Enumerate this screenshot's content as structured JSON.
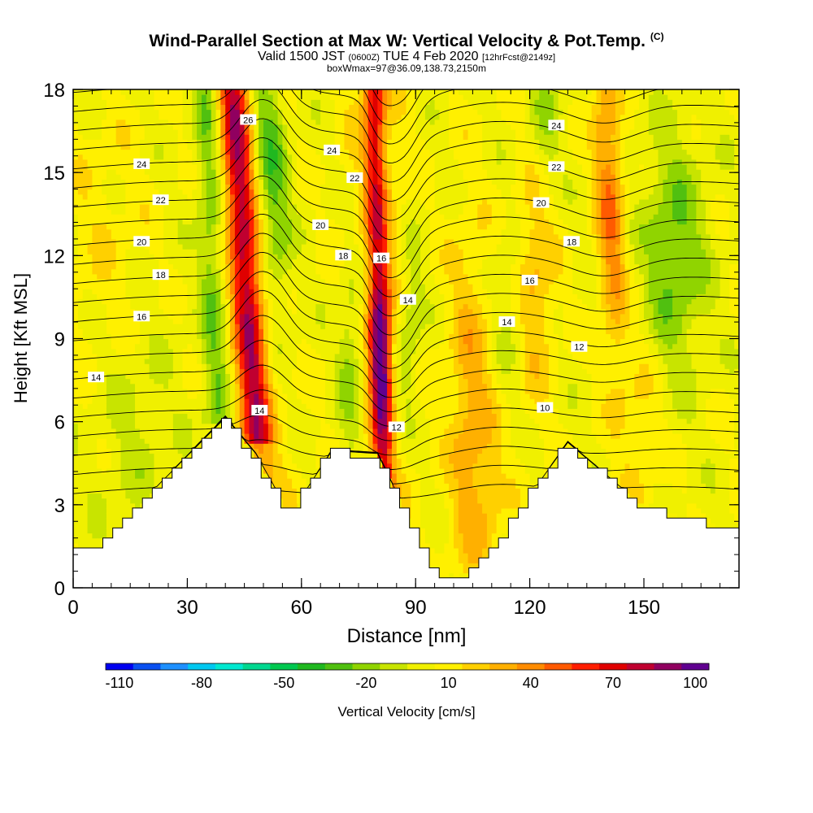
{
  "header": {
    "title": "Wind-Parallel Section at Max W: Vertical Velocity & Pot.Temp.",
    "copyright": "(C)",
    "valid_a": "Valid 1500 JST",
    "valid_b": "(0600Z)",
    "valid_c": "TUE 4 Feb 2020",
    "valid_d": "[12hrFcst@2149z]",
    "box": "boxWmax=97@36.09,138.73,2150m"
  },
  "chart_data": {
    "type": "heatmap",
    "xlabel": "Distance [nm]",
    "ylabel": "Height [Kft MSL]",
    "xlim": [
      0,
      175
    ],
    "ylim": [
      0,
      18
    ],
    "x_ticks": [
      "0",
      "30",
      "60",
      "90",
      "120",
      "150"
    ],
    "y_ticks": [
      "0",
      "3",
      "6",
      "9",
      "12",
      "15",
      "18"
    ],
    "colorbar": {
      "label": "Vertical Velocity [cm/s]",
      "tick_labels": [
        "-110",
        "-80",
        "-50",
        "-20",
        "10",
        "40",
        "70",
        "100"
      ],
      "colors": [
        "#0000f0",
        "#0a50f0",
        "#1e90ff",
        "#00c8f0",
        "#00e8d0",
        "#00d890",
        "#00c850",
        "#20b820",
        "#50c010",
        "#90d400",
        "#c8e400",
        "#f0f000",
        "#fff000",
        "#ffd000",
        "#ffb000",
        "#ff8c00",
        "#ff5a00",
        "#ff1e00",
        "#e00000",
        "#c00030",
        "#900060",
        "#600090"
      ]
    },
    "theta_labels": [
      {
        "text": "26",
        "x": 46,
        "y": 16.9
      },
      {
        "text": "24",
        "x": 18,
        "y": 15.3
      },
      {
        "text": "24",
        "x": 68,
        "y": 15.8
      },
      {
        "text": "24",
        "x": 127,
        "y": 16.7
      },
      {
        "text": "22",
        "x": 23,
        "y": 14.0
      },
      {
        "text": "22",
        "x": 74,
        "y": 14.8
      },
      {
        "text": "22",
        "x": 127,
        "y": 15.2
      },
      {
        "text": "20",
        "x": 18,
        "y": 12.5
      },
      {
        "text": "20",
        "x": 65,
        "y": 13.1
      },
      {
        "text": "20",
        "x": 123,
        "y": 13.9
      },
      {
        "text": "18",
        "x": 23,
        "y": 11.3
      },
      {
        "text": "18",
        "x": 71,
        "y": 12.0
      },
      {
        "text": "18",
        "x": 131,
        "y": 12.5
      },
      {
        "text": "16",
        "x": 18,
        "y": 9.8
      },
      {
        "text": "16",
        "x": 81,
        "y": 11.9
      },
      {
        "text": "16",
        "x": 120,
        "y": 11.1
      },
      {
        "text": "14",
        "x": 6,
        "y": 7.6
      },
      {
        "text": "14",
        "x": 88,
        "y": 10.4
      },
      {
        "text": "14",
        "x": 114,
        "y": 9.6
      },
      {
        "text": "14",
        "x": 49,
        "y": 6.4
      },
      {
        "text": "12",
        "x": 133,
        "y": 8.7
      },
      {
        "text": "12",
        "x": 85,
        "y": 5.8
      },
      {
        "text": "10",
        "x": 124,
        "y": 6.5
      }
    ]
  }
}
